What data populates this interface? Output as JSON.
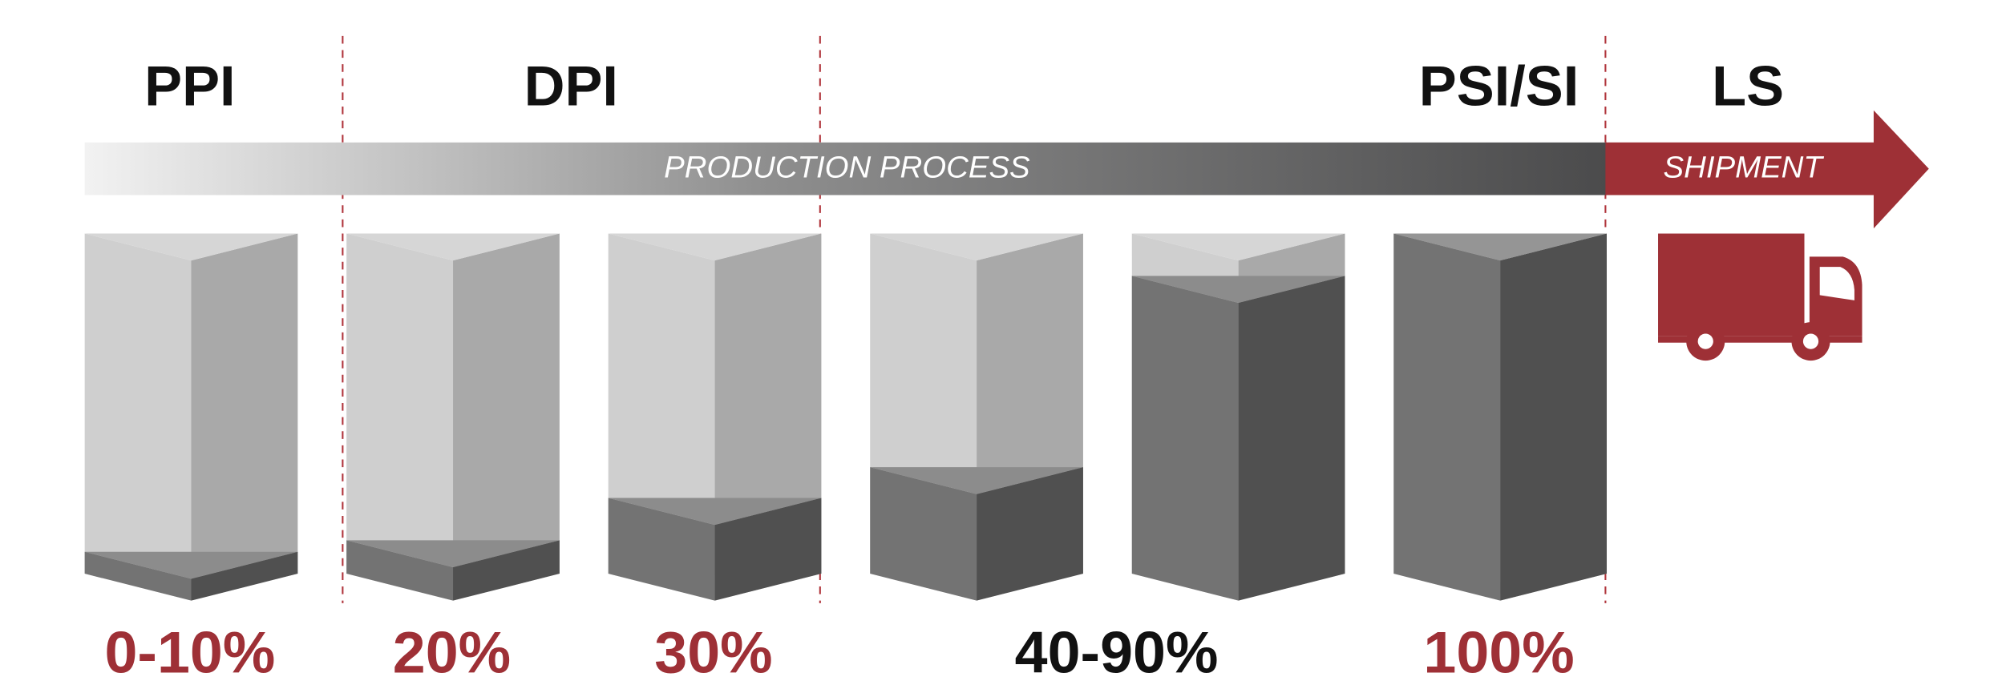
{
  "stages": [
    "PPI",
    "DPI",
    "PSI/SI",
    "LS"
  ],
  "arrow": {
    "process": "PRODUCTION PROCESS",
    "shipment": "SHIPMENT"
  },
  "percentages": [
    "0-10%",
    "20%",
    "30%",
    "40-90%",
    "100%"
  ]
}
